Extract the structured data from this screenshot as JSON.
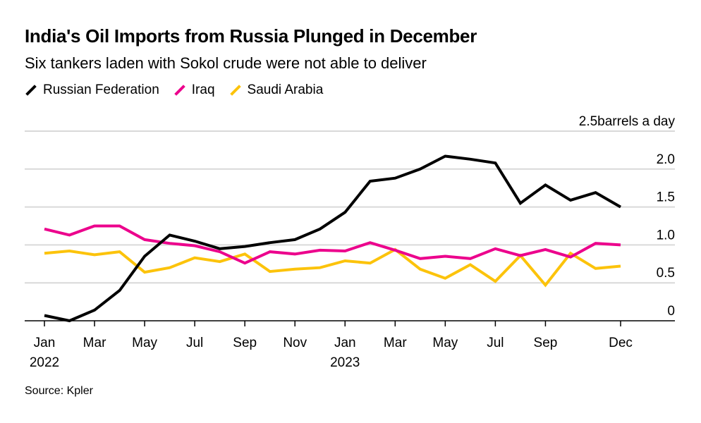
{
  "chart_data": {
    "type": "line",
    "title": "India's Oil Imports from Russia Plunged in December",
    "subtitle": "Six tankers laden with Sokol crude were not able to deliver",
    "source": "Source: Kpler",
    "yunit_label": "barrels a day",
    "ylim": [
      0,
      2.5
    ],
    "yticks": [
      "0",
      "0.5",
      "1.0",
      "1.5",
      "2.0",
      "2.5"
    ],
    "grid": true,
    "legend_position": "top-left",
    "x": [
      "2022-01",
      "2022-02",
      "2022-03",
      "2022-04",
      "2022-05",
      "2022-06",
      "2022-07",
      "2022-08",
      "2022-09",
      "2022-10",
      "2022-11",
      "2022-12",
      "2023-01",
      "2023-02",
      "2023-03",
      "2023-04",
      "2023-05",
      "2023-06",
      "2023-07",
      "2023-08",
      "2023-09",
      "2023-10",
      "2023-11",
      "2023-12"
    ],
    "xticks": [
      {
        "x": "2022-01",
        "label": "Jan",
        "year": "2022"
      },
      {
        "x": "2022-03",
        "label": "Mar"
      },
      {
        "x": "2022-05",
        "label": "May"
      },
      {
        "x": "2022-07",
        "label": "Jul"
      },
      {
        "x": "2022-09",
        "label": "Sep"
      },
      {
        "x": "2022-11",
        "label": "Nov"
      },
      {
        "x": "2023-01",
        "label": "Jan",
        "year": "2023"
      },
      {
        "x": "2023-03",
        "label": "Mar"
      },
      {
        "x": "2023-05",
        "label": "May"
      },
      {
        "x": "2023-07",
        "label": "Jul"
      },
      {
        "x": "2023-09",
        "label": "Sep"
      },
      {
        "x": "2023-12",
        "label": "Dec"
      }
    ],
    "series": [
      {
        "name": "Russian Federation",
        "color": "#000000",
        "values": [
          0.07,
          0.0,
          0.14,
          0.4,
          0.85,
          1.13,
          1.05,
          0.95,
          0.98,
          1.03,
          1.07,
          1.21,
          1.43,
          1.84,
          1.88,
          2.0,
          2.17,
          2.13,
          2.08,
          1.55,
          1.79,
          1.59,
          1.69,
          1.5
        ]
      },
      {
        "name": "Iraq",
        "color": "#ec008c",
        "values": [
          1.21,
          1.13,
          1.25,
          1.25,
          1.07,
          1.02,
          0.99,
          0.91,
          0.76,
          0.91,
          0.88,
          0.93,
          0.92,
          1.03,
          0.93,
          0.82,
          0.85,
          0.82,
          0.95,
          0.86,
          0.94,
          0.84,
          1.02,
          1.0
        ]
      },
      {
        "name": "Saudi Arabia",
        "color": "#fcc30b",
        "values": [
          0.89,
          0.92,
          0.87,
          0.91,
          0.64,
          0.7,
          0.83,
          0.78,
          0.88,
          0.65,
          0.68,
          0.7,
          0.79,
          0.76,
          0.94,
          0.68,
          0.56,
          0.74,
          0.52,
          0.86,
          0.47,
          0.89,
          0.69,
          0.72
        ]
      }
    ]
  }
}
